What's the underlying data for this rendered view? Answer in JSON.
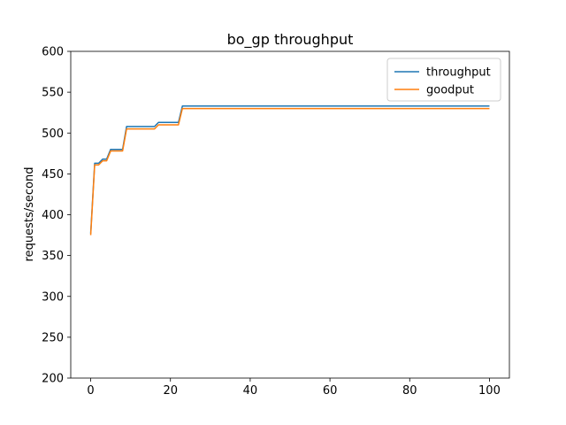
{
  "chart_data": {
    "type": "line",
    "title": "bo_gp throughput",
    "xlabel": "",
    "ylabel": "requests/second",
    "xlim": [
      -5,
      105
    ],
    "ylim": [
      200,
      600
    ],
    "xticks": [
      0,
      20,
      40,
      60,
      80,
      100
    ],
    "yticks": [
      200,
      250,
      300,
      350,
      400,
      450,
      500,
      550,
      600
    ],
    "grid": false,
    "legend": "top-right",
    "series": [
      {
        "name": "throughput",
        "color": "#1f77b4",
        "x": [
          0,
          1,
          2,
          3,
          4,
          5,
          6,
          7,
          8,
          9,
          10,
          11,
          12,
          13,
          14,
          15,
          16,
          17,
          18,
          19,
          20,
          21,
          22,
          23,
          24,
          100
        ],
        "y": [
          377,
          463,
          463,
          468,
          468,
          480,
          480,
          480,
          480,
          508,
          508,
          508,
          508,
          508,
          508,
          508,
          508,
          513,
          513,
          513,
          513,
          513,
          513,
          533,
          533,
          533
        ]
      },
      {
        "name": "goodput",
        "color": "#ff7f0e",
        "x": [
          0,
          1,
          2,
          3,
          4,
          5,
          6,
          7,
          8,
          9,
          10,
          11,
          12,
          13,
          14,
          15,
          16,
          17,
          18,
          19,
          20,
          21,
          22,
          23,
          24,
          100
        ],
        "y": [
          375,
          461,
          461,
          466,
          466,
          478,
          478,
          478,
          478,
          505,
          505,
          505,
          505,
          505,
          505,
          505,
          505,
          510,
          510,
          510,
          510,
          510,
          510,
          530,
          530,
          530
        ]
      }
    ]
  }
}
